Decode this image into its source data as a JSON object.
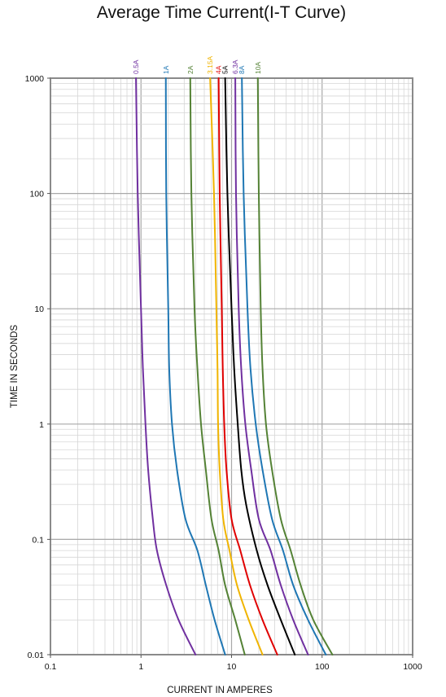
{
  "chart_data": {
    "type": "line",
    "title": "Average Time Current(I-T Curve)",
    "xlabel": "CURRENT IN AMPERES",
    "ylabel": "TIME IN SECONDS",
    "x_scale": "log",
    "y_scale": "log",
    "xlim": [
      0.1,
      1000
    ],
    "ylim": [
      0.01,
      1000
    ],
    "x_ticks": [
      "0.1",
      "1",
      "10",
      "100",
      "1000"
    ],
    "y_ticks": [
      "0.01",
      "0.1",
      "1",
      "10",
      "100",
      "1000"
    ],
    "grid": true,
    "series": [
      {
        "name": "0.5A",
        "color": "#7030a0",
        "points": [
          [
            0.88,
            1000
          ],
          [
            0.92,
            100
          ],
          [
            1.0,
            10
          ],
          [
            1.05,
            3
          ],
          [
            1.12,
            1
          ],
          [
            1.2,
            0.4
          ],
          [
            1.35,
            0.15
          ],
          [
            1.5,
            0.08
          ],
          [
            1.9,
            0.04
          ],
          [
            2.6,
            0.02
          ],
          [
            4.0,
            0.01
          ]
        ]
      },
      {
        "name": "1A",
        "color": "#1f77b4",
        "points": [
          [
            1.88,
            1000
          ],
          [
            1.9,
            100
          ],
          [
            2.0,
            10
          ],
          [
            2.05,
            3
          ],
          [
            2.2,
            1
          ],
          [
            2.5,
            0.4
          ],
          [
            3.1,
            0.15
          ],
          [
            4.2,
            0.08
          ],
          [
            5.2,
            0.04
          ],
          [
            6.5,
            0.02
          ],
          [
            8.5,
            0.01
          ]
        ]
      },
      {
        "name": "2A",
        "color": "#548235",
        "points": [
          [
            3.5,
            1000
          ],
          [
            3.6,
            100
          ],
          [
            3.9,
            10
          ],
          [
            4.2,
            3
          ],
          [
            4.6,
            1
          ],
          [
            5.2,
            0.4
          ],
          [
            6.0,
            0.15
          ],
          [
            7.2,
            0.08
          ],
          [
            8.5,
            0.04
          ],
          [
            11,
            0.02
          ],
          [
            14,
            0.01
          ]
        ]
      },
      {
        "name": "3.15A",
        "color": "#f0b400",
        "points": [
          [
            5.8,
            1000
          ],
          [
            6.4,
            100
          ],
          [
            6.8,
            10
          ],
          [
            7.0,
            3
          ],
          [
            7.1,
            1
          ],
          [
            7.4,
            0.4
          ],
          [
            8.1,
            0.15
          ],
          [
            9.5,
            0.08
          ],
          [
            11.5,
            0.04
          ],
          [
            15.5,
            0.02
          ],
          [
            22,
            0.01
          ]
        ]
      },
      {
        "name": "4A",
        "color": "#e00000",
        "points": [
          [
            7.2,
            1000
          ],
          [
            7.4,
            100
          ],
          [
            7.8,
            10
          ],
          [
            8.0,
            3
          ],
          [
            8.3,
            1
          ],
          [
            8.8,
            0.4
          ],
          [
            10,
            0.15
          ],
          [
            12.5,
            0.08
          ],
          [
            16,
            0.04
          ],
          [
            22,
            0.02
          ],
          [
            32,
            0.01
          ]
        ]
      },
      {
        "name": "5A",
        "color": "#000000",
        "points": [
          [
            8.5,
            1000
          ],
          [
            9.0,
            100
          ],
          [
            10,
            10
          ],
          [
            10.7,
            3
          ],
          [
            11.7,
            1
          ],
          [
            12.8,
            0.4
          ],
          [
            14.5,
            0.2
          ],
          [
            19,
            0.08
          ],
          [
            25,
            0.04
          ],
          [
            35,
            0.02
          ],
          [
            50,
            0.01
          ]
        ]
      },
      {
        "name": "6.3A",
        "color": "#7030a0",
        "points": [
          [
            11,
            1000
          ],
          [
            11.2,
            100
          ],
          [
            12,
            10
          ],
          [
            12.8,
            3
          ],
          [
            14.2,
            1
          ],
          [
            16.5,
            0.4
          ],
          [
            20,
            0.15
          ],
          [
            27,
            0.08
          ],
          [
            35,
            0.04
          ],
          [
            48,
            0.02
          ],
          [
            70,
            0.01
          ]
        ]
      },
      {
        "name": "8A",
        "color": "#1f77b4",
        "points": [
          [
            13,
            1000
          ],
          [
            13.6,
            100
          ],
          [
            15,
            10
          ],
          [
            16.2,
            3
          ],
          [
            18.5,
            1
          ],
          [
            22,
            0.4
          ],
          [
            28,
            0.15
          ],
          [
            37,
            0.08
          ],
          [
            48,
            0.04
          ],
          [
            70,
            0.02
          ],
          [
            110,
            0.01
          ]
        ]
      },
      {
        "name": "10A",
        "color": "#548235",
        "points": [
          [
            19.5,
            1000
          ],
          [
            20,
            100
          ],
          [
            21,
            10
          ],
          [
            22,
            3
          ],
          [
            24,
            1
          ],
          [
            28,
            0.4
          ],
          [
            35,
            0.15
          ],
          [
            45,
            0.08
          ],
          [
            58,
            0.04
          ],
          [
            80,
            0.02
          ],
          [
            130,
            0.01
          ]
        ]
      }
    ]
  }
}
